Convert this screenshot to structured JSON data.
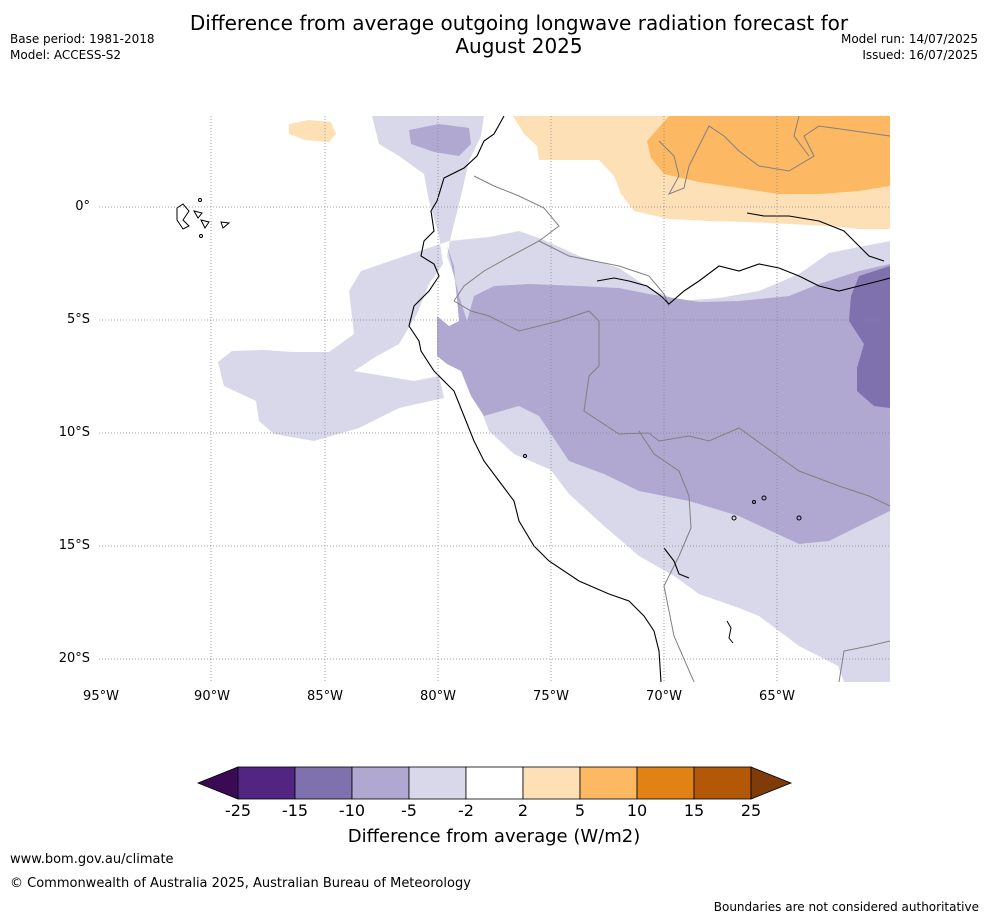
{
  "title": "Difference from average outgoing longwave radiation forecast for August 2025",
  "title_line1": "Difference from average outgoing longwave radiation forecast for",
  "title_line2": "August 2025",
  "meta": {
    "base_period": "Base period: 1981-2018",
    "model": "Model: ACCESS-S2",
    "model_run": "Model run: 14/07/2025",
    "issued": "Issued: 16/07/2025"
  },
  "map": {
    "x_ticks": [
      "95°W",
      "90°W",
      "85°W",
      "80°W",
      "75°W",
      "70°W",
      "65°W"
    ],
    "y_ticks": [
      "0°",
      "5°S",
      "10°S",
      "15°S",
      "20°S"
    ],
    "lon_range": [
      -95,
      -60
    ],
    "lat_range": [
      -21,
      4
    ],
    "grid": true
  },
  "colorbar": {
    "title": "Difference from average (W/m2)",
    "labels": [
      "-25",
      "-15",
      "-10",
      "-5",
      "-2",
      "2",
      "5",
      "10",
      "15",
      "25"
    ],
    "colors": {
      "below_-25": "#3a0a55",
      "-25_-15": "#522583",
      "-15_-10": "#7f71ad",
      "-10_-5": "#b0a8d0",
      "-5_-2": "#d8d8ea",
      "-2_2": "#ffffff",
      "2_5": "#fee0b6",
      "5_10": "#fdb863",
      "10_15": "#e08214",
      "15_25": "#b35806",
      "above_25": "#7f3b08"
    }
  },
  "footer": {
    "site": "www.bom.gov.au/climate",
    "copyright": "© Commonwealth of Australia 2025, Australian Bureau of Meteorology",
    "disclaimer": "Boundaries are not considered authoritative"
  }
}
